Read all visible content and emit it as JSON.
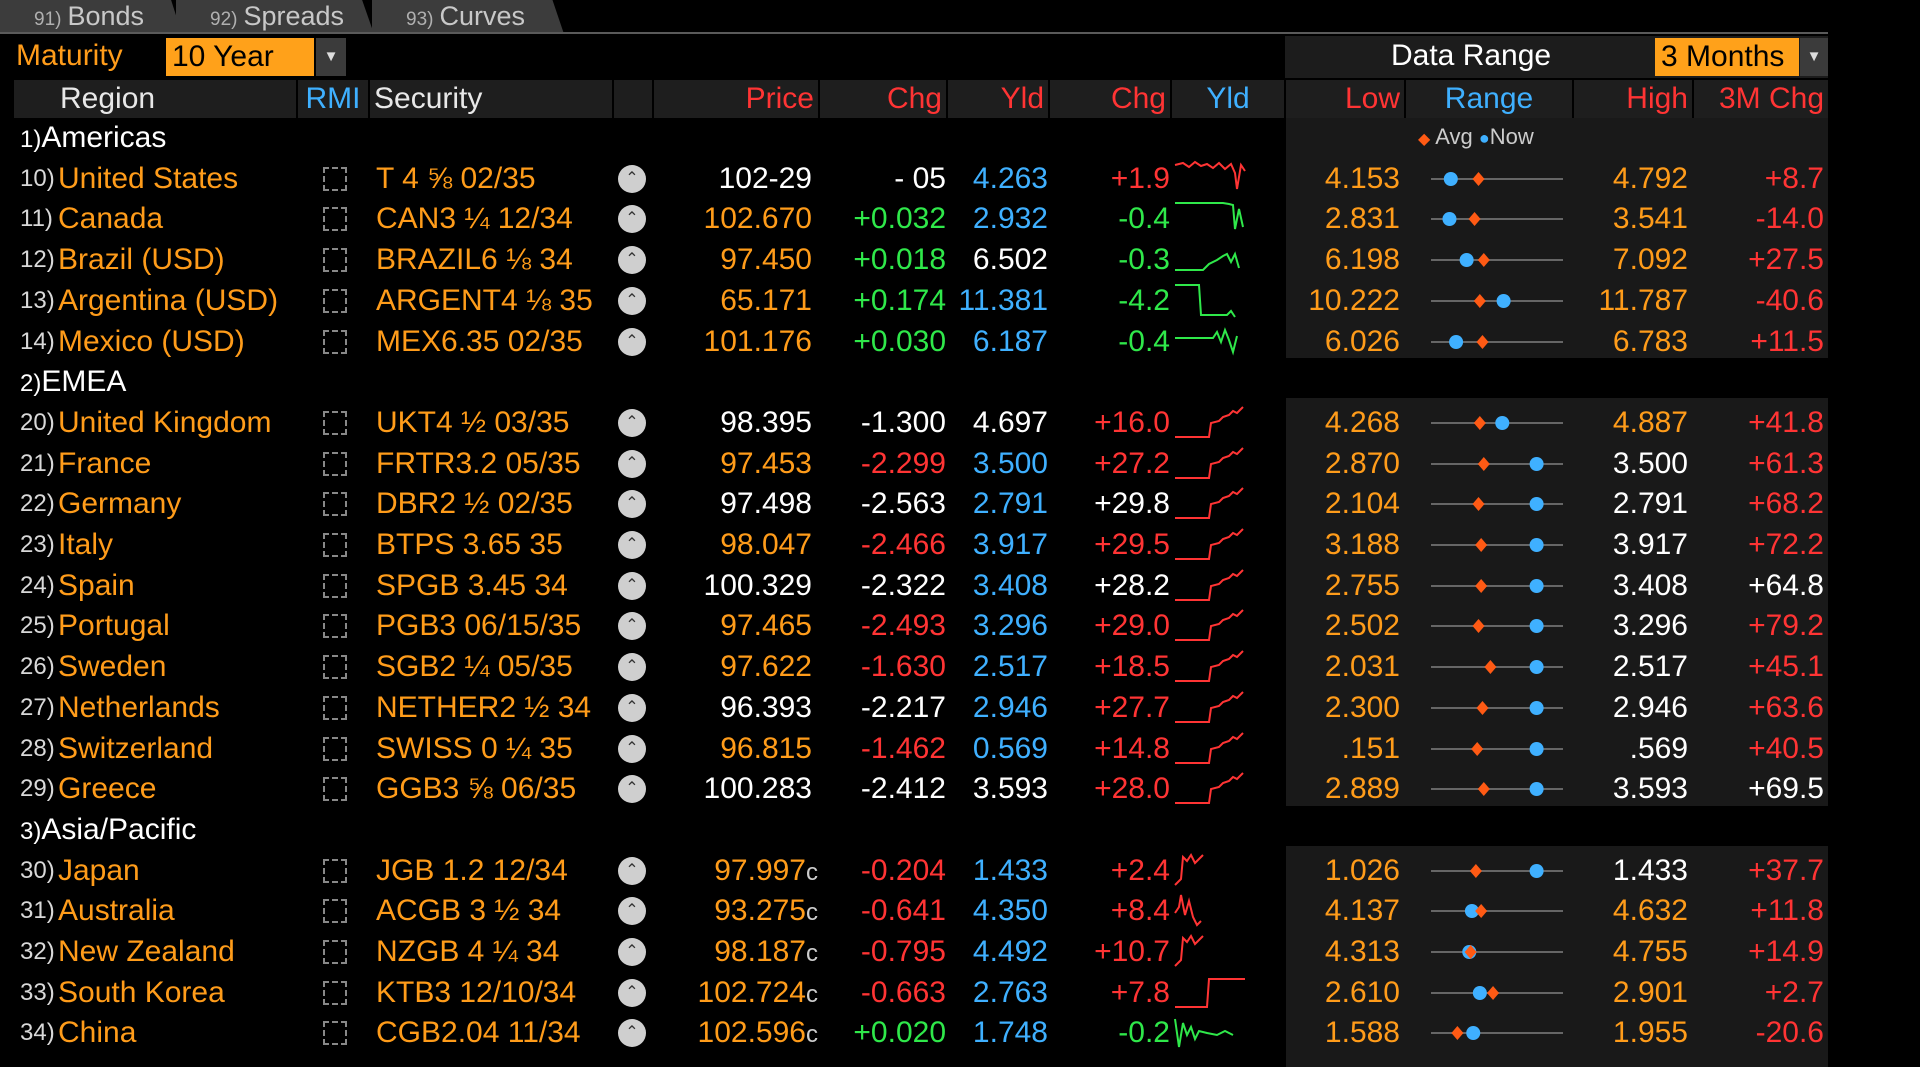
{
  "tabs": [
    {
      "num": "91)",
      "label": "Bonds"
    },
    {
      "num": "92)",
      "label": "Spreads"
    },
    {
      "num": "93)",
      "label": "Curves"
    }
  ],
  "toolbar": {
    "maturity_label": "Maturity",
    "maturity_value": "10 Year",
    "data_range_label": "Data Range",
    "data_range_value": "3 Months",
    "dropdown_icon": "caret-down-icon"
  },
  "headers": {
    "region": "Region",
    "rmi": "RMI",
    "security": "Security",
    "price": "Price",
    "chg": "Chg",
    "yld": "Yld",
    "yld_chg": "Chg",
    "yld_spark": "Yld",
    "low": "Low",
    "range": "Range",
    "high": "High",
    "m3chg": "3M Chg"
  },
  "legend": {
    "avg": "Avg",
    "now": "Now"
  },
  "colors": {
    "orange": "#ff9c1a",
    "green": "#2fe84a",
    "red": "#ff3434",
    "cyan": "#3fb0ff",
    "white": "#ffffff",
    "avg_marker": "#ff5a14",
    "now_marker": "#3fb0ff"
  },
  "groups": [
    {
      "num": "1)",
      "name": "Americas",
      "rows": [
        {
          "num": "10)",
          "name": "United States",
          "security": "T 4 ⅝ 02/35",
          "price": "102-29",
          "price_suffix": "",
          "chg": "- 05",
          "yld": "4.263",
          "yld_chg": "+1.9",
          "low": "4.153",
          "high": "4.792",
          "m3chg": "+8.7",
          "avg": 0.36,
          "now": 0.15,
          "pc": "w",
          "cc": "w",
          "yc": "c",
          "ycc": "r",
          "lc": "o",
          "hc": "o",
          "mc": "r",
          "spark": "flat_high"
        },
        {
          "num": "11)",
          "name": "Canada",
          "security": "CAN3 ¼ 12/34",
          "price": "102.670",
          "price_suffix": "",
          "chg": "+0.032",
          "yld": "2.932",
          "yld_chg": "-0.4",
          "low": "2.831",
          "high": "3.541",
          "m3chg": "-14.0",
          "avg": 0.33,
          "now": 0.14,
          "pc": "o",
          "cc": "g",
          "yc": "c",
          "ycc": "g",
          "lc": "o",
          "hc": "o",
          "mc": "r",
          "spark": "drop_end"
        },
        {
          "num": "12)",
          "name": "Brazil (USD)",
          "security": "BRAZIL6 ⅛ 34",
          "price": "97.450",
          "price_suffix": "",
          "chg": "+0.018",
          "yld": "6.502",
          "yld_chg": "-0.3",
          "low": "6.198",
          "high": "7.092",
          "m3chg": "+27.5",
          "avg": 0.4,
          "now": 0.27,
          "pc": "o",
          "cc": "g",
          "yc": "w",
          "ycc": "g",
          "lc": "o",
          "hc": "o",
          "mc": "r",
          "spark": "rise_mid"
        },
        {
          "num": "13)",
          "name": "Argentina (USD)",
          "security": "ARGENT4 ⅛ 35",
          "price": "65.171",
          "price_suffix": "",
          "chg": "+0.174",
          "yld": "11.381",
          "yld_chg": "-4.2",
          "low": "10.222",
          "high": "11.787",
          "m3chg": "-40.6",
          "avg": 0.37,
          "now": 0.55,
          "pc": "o",
          "cc": "g",
          "yc": "c",
          "ycc": "g",
          "lc": "o",
          "hc": "o",
          "mc": "r",
          "spark": "drop_step"
        },
        {
          "num": "14)",
          "name": "Mexico (USD)",
          "security": "MEX6.35 02/35",
          "price": "101.176",
          "price_suffix": "",
          "chg": "+0.030",
          "yld": "6.187",
          "yld_chg": "-0.4",
          "low": "6.026",
          "high": "6.783",
          "m3chg": "+11.5",
          "avg": 0.39,
          "now": 0.19,
          "pc": "o",
          "cc": "g",
          "yc": "c",
          "ycc": "g",
          "lc": "o",
          "hc": "o",
          "mc": "r",
          "spark": "flat_wiggle"
        }
      ]
    },
    {
      "num": "2)",
      "name": "EMEA",
      "rows": [
        {
          "num": "20)",
          "name": "United Kingdom",
          "security": "UKT4 ½ 03/35",
          "price": "98.395",
          "price_suffix": "",
          "chg": "-1.300",
          "yld": "4.697",
          "yld_chg": "+16.0",
          "low": "4.268",
          "high": "4.887",
          "m3chg": "+41.8",
          "avg": 0.37,
          "now": 0.54,
          "pc": "w",
          "cc": "w",
          "yc": "w",
          "ycc": "r",
          "lc": "o",
          "hc": "o",
          "mc": "r",
          "spark": "rise"
        },
        {
          "num": "21)",
          "name": "France",
          "security": "FRTR3.2 05/35",
          "price": "97.453",
          "price_suffix": "",
          "chg": "-2.299",
          "yld": "3.500",
          "yld_chg": "+27.2",
          "low": "2.870",
          "high": "3.500",
          "m3chg": "+61.3",
          "avg": 0.4,
          "now": 0.8,
          "pc": "o",
          "cc": "r",
          "yc": "c",
          "ycc": "r",
          "lc": "o",
          "hc": "w",
          "mc": "r",
          "spark": "rise"
        },
        {
          "num": "22)",
          "name": "Germany",
          "security": "DBR2 ½ 02/35",
          "price": "97.498",
          "price_suffix": "",
          "chg": "-2.563",
          "yld": "2.791",
          "yld_chg": "+29.8",
          "low": "2.104",
          "high": "2.791",
          "m3chg": "+68.2",
          "avg": 0.36,
          "now": 0.8,
          "pc": "w",
          "cc": "w",
          "yc": "c",
          "ycc": "w",
          "lc": "o",
          "hc": "w",
          "mc": "r",
          "spark": "rise"
        },
        {
          "num": "23)",
          "name": "Italy",
          "security": "BTPS 3.65 35",
          "price": "98.047",
          "price_suffix": "",
          "chg": "-2.466",
          "yld": "3.917",
          "yld_chg": "+29.5",
          "low": "3.188",
          "high": "3.917",
          "m3chg": "+72.2",
          "avg": 0.38,
          "now": 0.8,
          "pc": "o",
          "cc": "r",
          "yc": "c",
          "ycc": "r",
          "lc": "o",
          "hc": "w",
          "mc": "r",
          "spark": "rise"
        },
        {
          "num": "24)",
          "name": "Spain",
          "security": "SPGB 3.45 34",
          "price": "100.329",
          "price_suffix": "",
          "chg": "-2.322",
          "yld": "3.408",
          "yld_chg": "+28.2",
          "low": "2.755",
          "high": "3.408",
          "m3chg": "+64.8",
          "avg": 0.38,
          "now": 0.8,
          "pc": "w",
          "cc": "w",
          "yc": "c",
          "ycc": "w",
          "lc": "o",
          "hc": "w",
          "mc": "w",
          "spark": "rise"
        },
        {
          "num": "25)",
          "name": "Portugal",
          "security": "PGB3 06/15/35",
          "price": "97.465",
          "price_suffix": "",
          "chg": "-2.493",
          "yld": "3.296",
          "yld_chg": "+29.0",
          "low": "2.502",
          "high": "3.296",
          "m3chg": "+79.2",
          "avg": 0.36,
          "now": 0.8,
          "pc": "o",
          "cc": "r",
          "yc": "c",
          "ycc": "r",
          "lc": "o",
          "hc": "w",
          "mc": "r",
          "spark": "rise"
        },
        {
          "num": "26)",
          "name": "Sweden",
          "security": "SGB2 ¼ 05/35",
          "price": "97.622",
          "price_suffix": "",
          "chg": "-1.630",
          "yld": "2.517",
          "yld_chg": "+18.5",
          "low": "2.031",
          "high": "2.517",
          "m3chg": "+45.1",
          "avg": 0.45,
          "now": 0.8,
          "pc": "o",
          "cc": "r",
          "yc": "c",
          "ycc": "r",
          "lc": "o",
          "hc": "w",
          "mc": "r",
          "spark": "rise"
        },
        {
          "num": "27)",
          "name": "Netherlands",
          "security": "NETHER2 ½ 34",
          "price": "96.393",
          "price_suffix": "",
          "chg": "-2.217",
          "yld": "2.946",
          "yld_chg": "+27.7",
          "low": "2.300",
          "high": "2.946",
          "m3chg": "+63.6",
          "avg": 0.39,
          "now": 0.8,
          "pc": "w",
          "cc": "w",
          "yc": "c",
          "ycc": "r",
          "lc": "o",
          "hc": "w",
          "mc": "r",
          "spark": "rise"
        },
        {
          "num": "28)",
          "name": "Switzerland",
          "security": "SWISS 0 ¼ 35",
          "price": "96.815",
          "price_suffix": "",
          "chg": "-1.462",
          "yld": "0.569",
          "yld_chg": "+14.8",
          "low": ".151",
          "high": ".569",
          "m3chg": "+40.5",
          "avg": 0.35,
          "now": 0.8,
          "pc": "o",
          "cc": "r",
          "yc": "c",
          "ycc": "r",
          "lc": "o",
          "hc": "w",
          "mc": "r",
          "spark": "rise"
        },
        {
          "num": "29)",
          "name": "Greece",
          "security": "GGB3 ⅝ 06/35",
          "price": "100.283",
          "price_suffix": "",
          "chg": "-2.412",
          "yld": "3.593",
          "yld_chg": "+28.0",
          "low": "2.889",
          "high": "3.593",
          "m3chg": "+69.5",
          "avg": 0.4,
          "now": 0.8,
          "pc": "w",
          "cc": "w",
          "yc": "w",
          "ycc": "r",
          "lc": "o",
          "hc": "w",
          "mc": "w",
          "spark": "rise"
        }
      ]
    },
    {
      "num": "3)",
      "name": "Asia/Pacific",
      "rows": [
        {
          "num": "30)",
          "name": "Japan",
          "security": "JGB 1.2 12/34",
          "price": "97.997",
          "price_suffix": "c",
          "chg": "-0.204",
          "yld": "1.433",
          "yld_chg": "+2.4",
          "low": "1.026",
          "high": "1.433",
          "m3chg": "+37.7",
          "avg": 0.34,
          "now": 0.8,
          "pc": "o",
          "cc": "r",
          "yc": "c",
          "ycc": "r",
          "lc": "o",
          "hc": "w",
          "mc": "r",
          "spark": "rise_early"
        },
        {
          "num": "31)",
          "name": "Australia",
          "security": "ACGB 3 ½ 34",
          "price": "93.275",
          "price_suffix": "c",
          "chg": "-0.641",
          "yld": "4.350",
          "yld_chg": "+8.4",
          "low": "4.137",
          "high": "4.632",
          "m3chg": "+11.8",
          "avg": 0.38,
          "now": 0.31,
          "pc": "o",
          "cc": "r",
          "yc": "c",
          "ycc": "r",
          "lc": "o",
          "hc": "o",
          "mc": "r",
          "spark": "up_down"
        },
        {
          "num": "32)",
          "name": "New Zealand",
          "security": "NZGB 4 ¼ 34",
          "price": "98.187",
          "price_suffix": "c",
          "chg": "-0.795",
          "yld": "4.492",
          "yld_chg": "+10.7",
          "low": "4.313",
          "high": "4.755",
          "m3chg": "+14.9",
          "avg": 0.3,
          "now": 0.29,
          "pc": "o",
          "cc": "r",
          "yc": "c",
          "ycc": "r",
          "lc": "o",
          "hc": "o",
          "mc": "r",
          "spark": "rise_early"
        },
        {
          "num": "33)",
          "name": "South Korea",
          "security": "KTB3 12/10/34",
          "price": "102.724",
          "price_suffix": "c",
          "chg": "-0.663",
          "yld": "2.763",
          "yld_chg": "+7.8",
          "low": "2.610",
          "high": "2.901",
          "m3chg": "+2.7",
          "avg": 0.47,
          "now": 0.37,
          "pc": "o",
          "cc": "r",
          "yc": "c",
          "ycc": "r",
          "lc": "o",
          "hc": "o",
          "mc": "r",
          "spark": "step_up"
        },
        {
          "num": "34)",
          "name": "China",
          "security": "CGB2.04 11/34",
          "price": "102.596",
          "price_suffix": "c",
          "chg": "+0.020",
          "yld": "1.748",
          "yld_chg": "-0.2",
          "low": "1.588",
          "high": "1.955",
          "m3chg": "-20.6",
          "avg": 0.2,
          "now": 0.32,
          "pc": "o",
          "cc": "g",
          "yc": "c",
          "ycc": "g",
          "lc": "o",
          "hc": "o",
          "mc": "r",
          "spark": "drop_early"
        }
      ]
    }
  ]
}
